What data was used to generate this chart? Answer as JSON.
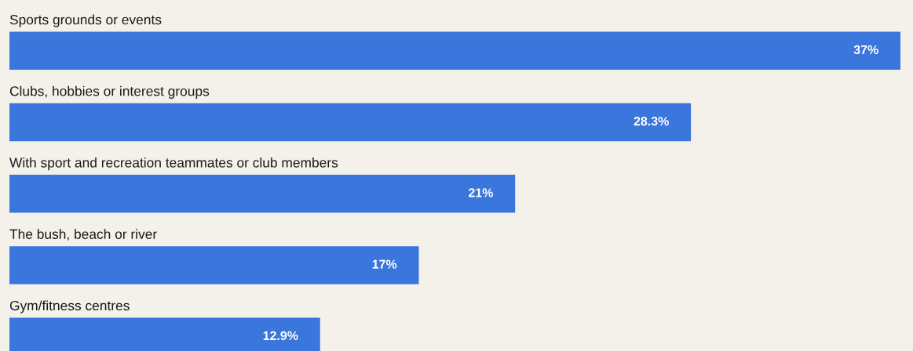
{
  "chart_data": {
    "type": "bar",
    "orientation": "horizontal",
    "relative": false,
    "categories": [
      "Sports grounds or events",
      "Clubs, hobbies or interest groups",
      "With sport and recreation teammates or club members",
      "The bush, beach or river",
      "Gym/fitness centres"
    ],
    "values": [
      37,
      28.3,
      21,
      17,
      12.9
    ],
    "value_labels": [
      "37%",
      "28.3%",
      "21%",
      "17%",
      "12.9%"
    ],
    "color": "#3b76dc",
    "grid": false,
    "legend": false,
    "tick_labels": false
  }
}
